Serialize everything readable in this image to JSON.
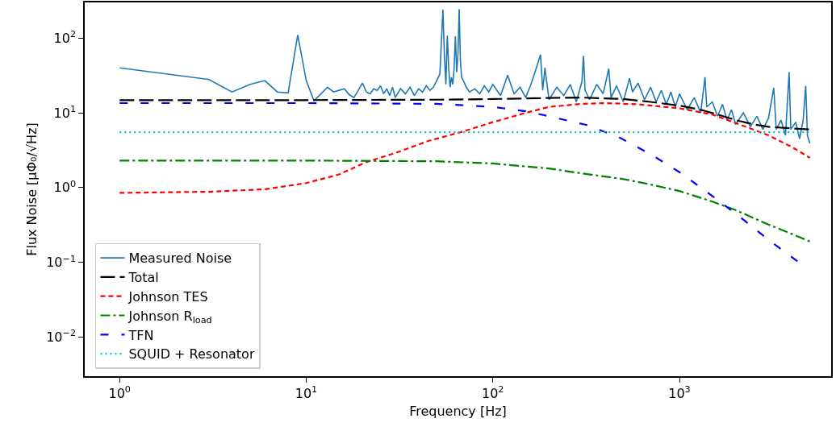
{
  "chart_data": {
    "type": "line",
    "xlabel": "Frequency [Hz]",
    "ylabel": "Flux Noise [μΦ₀/√Hz]",
    "log": "xy",
    "grid": false,
    "legend": "bottom left",
    "xlim": [
      0.65,
      6500
    ],
    "ylim": [
      0.003,
      300
    ],
    "xticks": [
      {
        "value": 1,
        "label": "10$^{0}$"
      },
      {
        "value": 10,
        "label": "10$^{1}$"
      },
      {
        "value": 100,
        "label": "10$^{2}$"
      },
      {
        "value": 1000,
        "label": "10$^{3}$"
      }
    ],
    "yticks": [
      {
        "value": 0.01,
        "label": "10$^{−2}$"
      },
      {
        "value": 0.1,
        "label": "10$^{−1}$"
      },
      {
        "value": 1,
        "label": "10$^{0}$"
      },
      {
        "value": 10,
        "label": "10$^{1}$"
      },
      {
        "value": 100,
        "label": "10$^{2}$"
      }
    ],
    "series": [
      {
        "name": "Measured Noise",
        "color": "#1f77b4",
        "line_style": "solid",
        "x": [
          1,
          3,
          4,
          5,
          6,
          7,
          8,
          9,
          10,
          11,
          12,
          13,
          14,
          15,
          16,
          17,
          18,
          19,
          20,
          21,
          22,
          23,
          24,
          25,
          26,
          27,
          28,
          29,
          30,
          32,
          34,
          36,
          38,
          40,
          42,
          44,
          46,
          48,
          50,
          52,
          53,
          54,
          55,
          56,
          57,
          58,
          59,
          60,
          61,
          62,
          63,
          64,
          65,
          66,
          67,
          68,
          70,
          72,
          75,
          80,
          85,
          90,
          95,
          100,
          110,
          120,
          130,
          140,
          150,
          160,
          170,
          180,
          185,
          190,
          200,
          220,
          240,
          260,
          280,
          300,
          306,
          312,
          330,
          360,
          390,
          418,
          430,
          460,
          500,
          540,
          560,
          600,
          650,
          700,
          750,
          800,
          850,
          900,
          950,
          1000,
          1100,
          1200,
          1300,
          1370,
          1400,
          1500,
          1600,
          1700,
          1800,
          1900,
          2000,
          2200,
          2400,
          2600,
          2800,
          3000,
          3200,
          3300,
          3500,
          3700,
          3870,
          3950,
          4200,
          4400,
          4600,
          4750,
          4850,
          5000
        ],
        "values": [
          40,
          28,
          19,
          24,
          27,
          19,
          18.5,
          110,
          27,
          14.5,
          18,
          22,
          19,
          20,
          21,
          17.5,
          16,
          20,
          25,
          19,
          18,
          21,
          20,
          23,
          18,
          21,
          17,
          22,
          16,
          21,
          18,
          22,
          17,
          21,
          19,
          23,
          20,
          22,
          27,
          33,
          90,
          240,
          60,
          24,
          108,
          40,
          22,
          30,
          24,
          40,
          106,
          35,
          60,
          245,
          50,
          30,
          26,
          22,
          19,
          21,
          18,
          23,
          19,
          24,
          17,
          32,
          18,
          22,
          16,
          24,
          38,
          60,
          20,
          40,
          15,
          22,
          17,
          24,
          14,
          26,
          58,
          20,
          15,
          24,
          18,
          39,
          16,
          23,
          14,
          29,
          19,
          25,
          15,
          22,
          14,
          20,
          13,
          19,
          12,
          18,
          11,
          16,
          10,
          30,
          12,
          14,
          9,
          13,
          8,
          11,
          7,
          10,
          6.5,
          9,
          6,
          8.5,
          21.6,
          6,
          8,
          5,
          35,
          6,
          7.5,
          4.5,
          8,
          23,
          5,
          3.9
        ]
      },
      {
        "name": "Total",
        "color": "#000000",
        "line_style": "longdash",
        "x": [
          1,
          10,
          50,
          100,
          200,
          300,
          500,
          700,
          1000,
          1300,
          1600,
          2000,
          2500,
          3000,
          4000,
          5000
        ],
        "values": [
          14.8,
          14.8,
          15,
          15.3,
          15.8,
          16,
          15.3,
          14,
          12.5,
          11,
          9.5,
          8,
          7,
          6.5,
          6.2,
          6
        ]
      },
      {
        "name": "Johnson TES",
        "color": "#ff0000",
        "line_style": "dashed",
        "x": [
          1,
          3,
          6,
          10,
          15,
          21,
          30,
          45,
          67,
          100,
          150,
          200,
          300,
          400,
          600,
          1000,
          1500,
          2100,
          3000,
          4000,
          5000
        ],
        "values": [
          0.85,
          0.88,
          0.95,
          1.15,
          1.5,
          2.2,
          2.9,
          4.2,
          5.5,
          7.5,
          10,
          12,
          13.2,
          13.5,
          13,
          11.5,
          9.5,
          7,
          5,
          3.5,
          2.5
        ]
      },
      {
        "name": "Johnson R$_{load}$",
        "color": "#008000",
        "line_style": "dashdot",
        "x": [
          1,
          10,
          50,
          100,
          200,
          300,
          500,
          700,
          1000,
          1500,
          2000,
          3000,
          4000,
          5000
        ],
        "values": [
          2.3,
          2.3,
          2.25,
          2.1,
          1.8,
          1.55,
          1.3,
          1.1,
          0.9,
          0.65,
          0.5,
          0.32,
          0.24,
          0.19
        ]
      },
      {
        "name": "TFN",
        "color": "#0000ff",
        "line_style": "sparsedash",
        "x": [
          1,
          10,
          50,
          100,
          150,
          200,
          316,
          475,
          700,
          1020,
          1470,
          2050,
          3000,
          4360
        ],
        "values": [
          13.5,
          13.5,
          13.2,
          12,
          10.5,
          9,
          6.9,
          4.7,
          2.8,
          1.56,
          0.8,
          0.43,
          0.2,
          0.1
        ]
      },
      {
        "name": "SQUID + Resonator",
        "color": "#00bfbf",
        "line_style": "dotted",
        "x": [
          1,
          5000
        ],
        "values": [
          5.5,
          5.5
        ]
      }
    ]
  }
}
